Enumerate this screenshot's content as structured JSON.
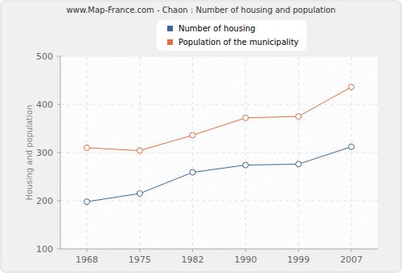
{
  "chart_data": {
    "type": "line",
    "title": "www.Map-France.com - Chaon : Number of housing and population",
    "y_label": "Housing and population",
    "categories": [
      "1968",
      "1975",
      "1982",
      "1990",
      "1999",
      "2007"
    ],
    "series": [
      {
        "name": "Number of housing",
        "color": "#3a6899",
        "values": [
          198,
          215,
          259,
          274,
          276,
          312
        ]
      },
      {
        "name": "Population of the municipality",
        "color": "#e0703f",
        "values": [
          310,
          304,
          336,
          372,
          375,
          436
        ]
      }
    ],
    "ylim": [
      100,
      500
    ],
    "yticks": [
      100,
      200,
      300,
      400,
      500
    ],
    "grid": true,
    "legend": "top",
    "marker": "circle"
  }
}
